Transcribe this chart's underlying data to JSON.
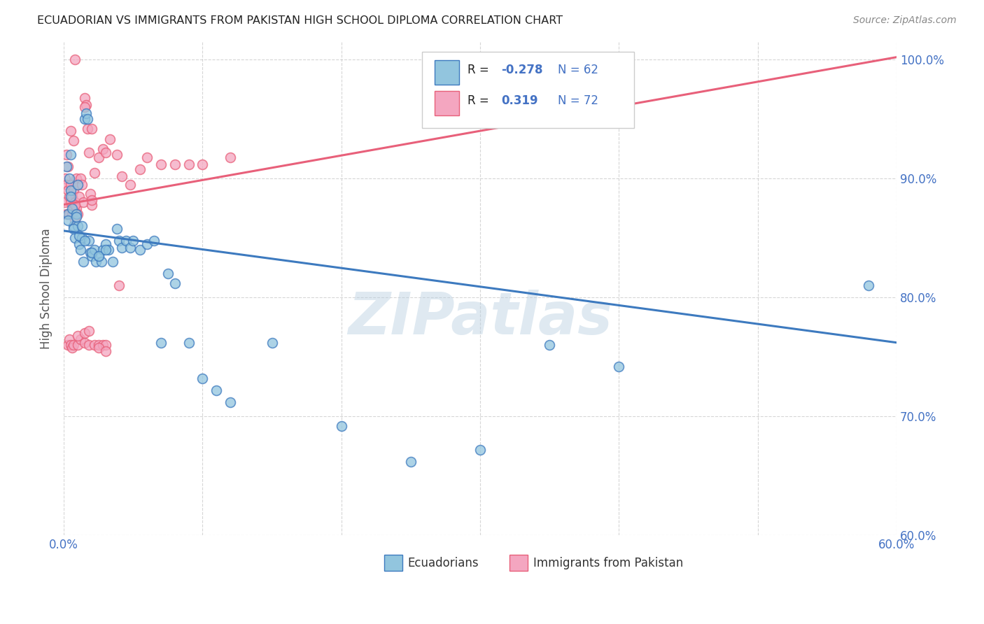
{
  "title": "ECUADORIAN VS IMMIGRANTS FROM PAKISTAN HIGH SCHOOL DIPLOMA CORRELATION CHART",
  "source": "Source: ZipAtlas.com",
  "ylabel": "High School Diploma",
  "xmin": 0.0,
  "xmax": 0.6,
  "ymin": 0.6,
  "ymax": 1.015,
  "color_blue": "#92c5de",
  "color_pink": "#f4a6c0",
  "color_blue_line": "#3d7abf",
  "color_pink_line": "#e8607a",
  "watermark": "ZIPatlas",
  "blue_line_x0": 0.0,
  "blue_line_y0": 0.856,
  "blue_line_x1": 0.6,
  "blue_line_y1": 0.762,
  "pink_line_x0": 0.0,
  "pink_line_y0": 0.878,
  "pink_line_x1": 0.6,
  "pink_line_y1": 1.002,
  "ecuadorians_x": [
    0.002,
    0.003,
    0.004,
    0.005,
    0.005,
    0.006,
    0.007,
    0.008,
    0.009,
    0.01,
    0.01,
    0.011,
    0.012,
    0.013,
    0.014,
    0.015,
    0.016,
    0.017,
    0.018,
    0.019,
    0.02,
    0.022,
    0.023,
    0.025,
    0.027,
    0.028,
    0.03,
    0.032,
    0.035,
    0.038,
    0.04,
    0.042,
    0.045,
    0.048,
    0.05,
    0.055,
    0.06,
    0.065,
    0.07,
    0.075,
    0.08,
    0.09,
    0.1,
    0.11,
    0.12,
    0.15,
    0.2,
    0.25,
    0.3,
    0.35,
    0.4,
    0.003,
    0.005,
    0.007,
    0.009,
    0.011,
    0.013,
    0.015,
    0.02,
    0.025,
    0.03,
    0.58
  ],
  "ecuadorians_y": [
    0.91,
    0.87,
    0.9,
    0.89,
    0.92,
    0.875,
    0.86,
    0.85,
    0.87,
    0.86,
    0.895,
    0.845,
    0.84,
    0.85,
    0.83,
    0.95,
    0.955,
    0.95,
    0.848,
    0.838,
    0.835,
    0.84,
    0.83,
    0.835,
    0.83,
    0.84,
    0.845,
    0.84,
    0.83,
    0.858,
    0.848,
    0.842,
    0.848,
    0.842,
    0.848,
    0.84,
    0.845,
    0.848,
    0.762,
    0.82,
    0.812,
    0.762,
    0.732,
    0.722,
    0.712,
    0.762,
    0.692,
    0.662,
    0.672,
    0.76,
    0.742,
    0.865,
    0.885,
    0.858,
    0.868,
    0.852,
    0.86,
    0.848,
    0.838,
    0.835,
    0.84,
    0.81
  ],
  "pakistan_x": [
    0.001,
    0.001,
    0.002,
    0.002,
    0.002,
    0.003,
    0.003,
    0.004,
    0.004,
    0.005,
    0.005,
    0.006,
    0.006,
    0.007,
    0.007,
    0.008,
    0.008,
    0.009,
    0.009,
    0.01,
    0.01,
    0.011,
    0.012,
    0.013,
    0.014,
    0.015,
    0.016,
    0.017,
    0.018,
    0.019,
    0.02,
    0.022,
    0.025,
    0.028,
    0.03,
    0.033,
    0.038,
    0.042,
    0.048,
    0.055,
    0.06,
    0.07,
    0.08,
    0.09,
    0.1,
    0.12,
    0.003,
    0.004,
    0.005,
    0.006,
    0.007,
    0.008,
    0.01,
    0.012,
    0.015,
    0.018,
    0.022,
    0.025,
    0.028,
    0.005,
    0.007,
    0.02,
    0.03,
    0.008,
    0.015,
    0.02,
    0.01,
    0.015,
    0.018,
    0.025,
    0.03,
    0.04
  ],
  "pakistan_y": [
    0.9,
    0.88,
    0.92,
    0.895,
    0.87,
    0.89,
    0.91,
    0.885,
    0.87,
    0.895,
    0.88,
    0.885,
    0.87,
    0.875,
    0.89,
    0.88,
    0.865,
    0.9,
    0.875,
    0.895,
    0.87,
    0.885,
    0.9,
    0.895,
    0.88,
    0.968,
    0.962,
    0.942,
    0.922,
    0.887,
    0.878,
    0.905,
    0.918,
    0.925,
    0.922,
    0.933,
    0.92,
    0.902,
    0.895,
    0.908,
    0.918,
    0.912,
    0.912,
    0.912,
    0.912,
    0.918,
    0.76,
    0.765,
    0.76,
    0.758,
    0.76,
    1.0,
    0.76,
    0.765,
    0.762,
    0.76,
    0.76,
    0.76,
    0.76,
    0.94,
    0.932,
    0.942,
    0.76,
    0.878,
    0.96,
    0.882,
    0.768,
    0.77,
    0.772,
    0.758,
    0.755,
    0.81
  ]
}
